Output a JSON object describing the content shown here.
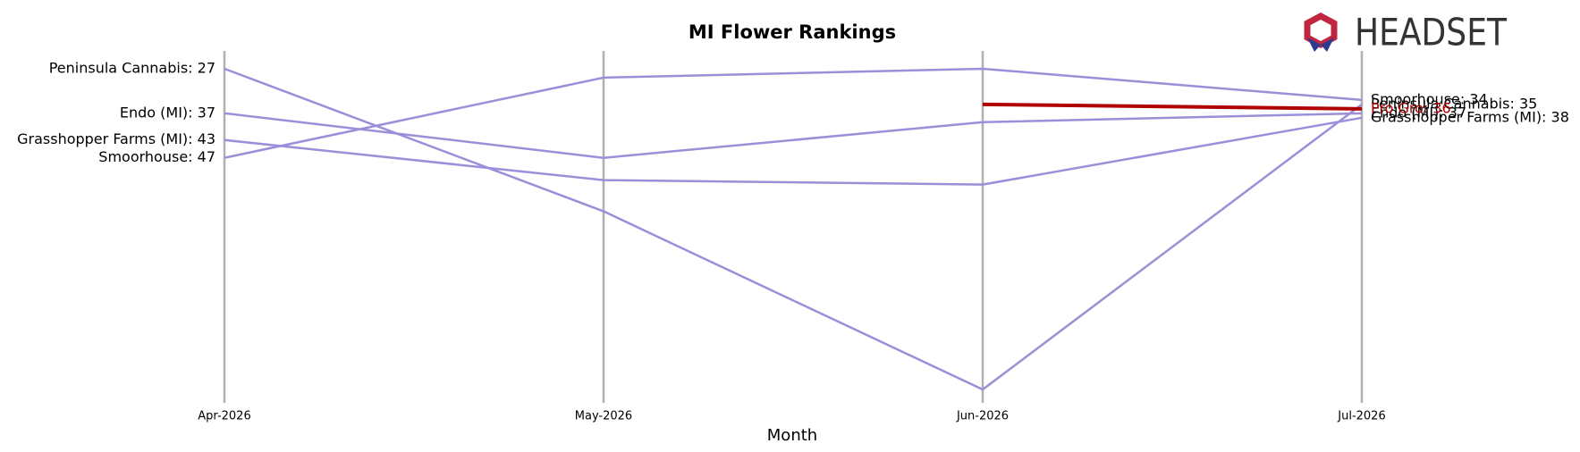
{
  "chart_data": {
    "type": "line",
    "title": "MI Flower Rankings",
    "x_label": "Month",
    "categories": [
      "Apr-2026",
      "May-2026",
      "Jun-2026",
      "Jul-2026"
    ],
    "ylim": [
      102,
      23
    ],
    "grid": true,
    "series": [
      {
        "name": "Peninsula Cannabis",
        "color": "#9b8fd9",
        "values": [
          27,
          59,
          99,
          35
        ],
        "value_labels": [
          "Peninsula Cannabis: 27",
          null,
          null,
          "Peninsula Cannabis: 35"
        ]
      },
      {
        "name": "Endo (MI)",
        "color": "#9b8fd9",
        "values": [
          37,
          47,
          39,
          37
        ],
        "value_labels": [
          "Endo (MI): 37",
          null,
          null,
          "Endo (MI): 37"
        ]
      },
      {
        "name": "Grasshopper Farms (MI)",
        "color": "#9b8fd9",
        "values": [
          43,
          52,
          53,
          38
        ],
        "value_labels": [
          "Grasshopper Farms (MI): 43",
          null,
          null,
          "Grasshopper Farms (MI): 38"
        ]
      },
      {
        "name": "Smoorhouse",
        "color": "#9b8fd9",
        "values": [
          47,
          29,
          27,
          34
        ],
        "value_labels": [
          "Smoorhouse: 47",
          null,
          null,
          "Smoorhouse: 34"
        ]
      },
      {
        "name": "Pro Gro",
        "color": "#b00000",
        "values": [
          null,
          null,
          35,
          36
        ],
        "value_labels": [
          null,
          null,
          null,
          "Pro Gro: 36"
        ]
      }
    ]
  },
  "logo": "HEADSET"
}
